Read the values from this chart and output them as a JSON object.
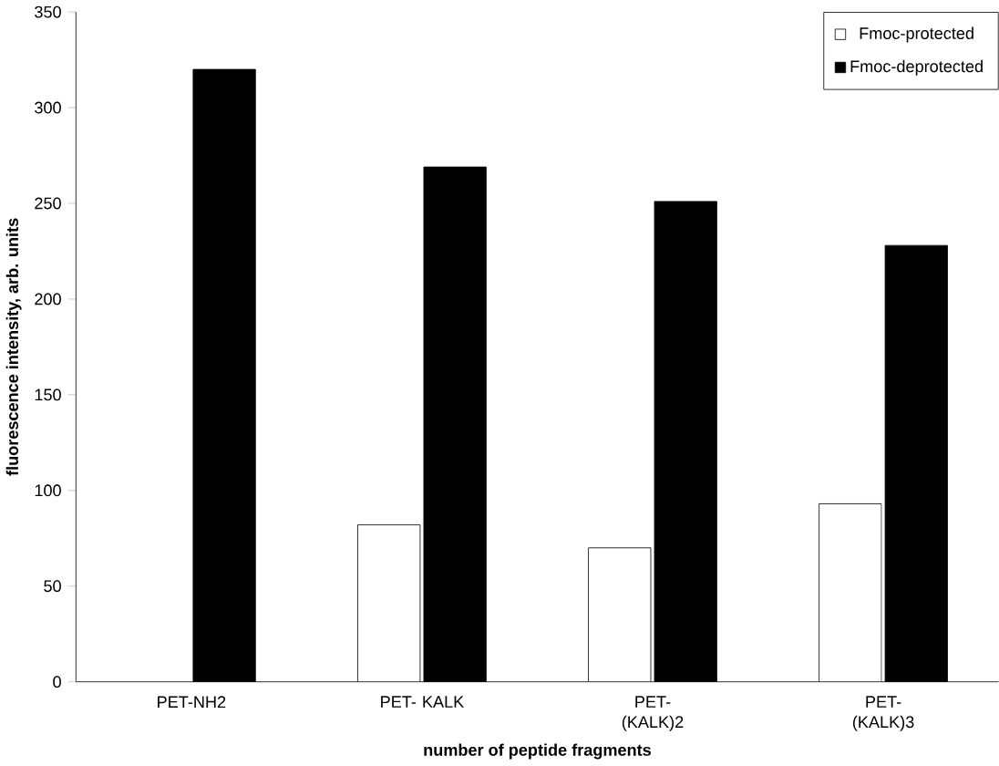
{
  "chart_data": {
    "type": "bar",
    "xlabel": "number of peptide fragments",
    "ylabel": "fluorescence intensity, arb. units",
    "categories": [
      "PET-NH2",
      "PET- KALK",
      "PET- (KALK)2",
      "PET- (KALK)3"
    ],
    "series": [
      {
        "name": "Fmoc-protected",
        "color": "#ffffff",
        "values": [
          null,
          82,
          70,
          93
        ]
      },
      {
        "name": "Fmoc-deprotected",
        "color": "#000000",
        "values": [
          320,
          269,
          251,
          228
        ]
      }
    ],
    "ylim": [
      0,
      350
    ],
    "yticks": [
      0,
      50,
      100,
      150,
      200,
      250,
      300,
      350
    ],
    "grid": false,
    "legend": "top right"
  }
}
